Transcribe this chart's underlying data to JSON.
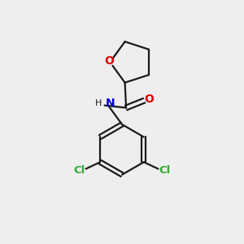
{
  "background_color": "#eeeeee",
  "bond_color": "#1a1a1a",
  "oxygen_color": "#dd0000",
  "nitrogen_color": "#0000cc",
  "chlorine_color": "#33aa33",
  "line_width": 1.6,
  "figsize": [
    3.0,
    3.0
  ],
  "dpi": 100,
  "xlim": [
    0,
    10
  ],
  "ylim": [
    0,
    10
  ]
}
